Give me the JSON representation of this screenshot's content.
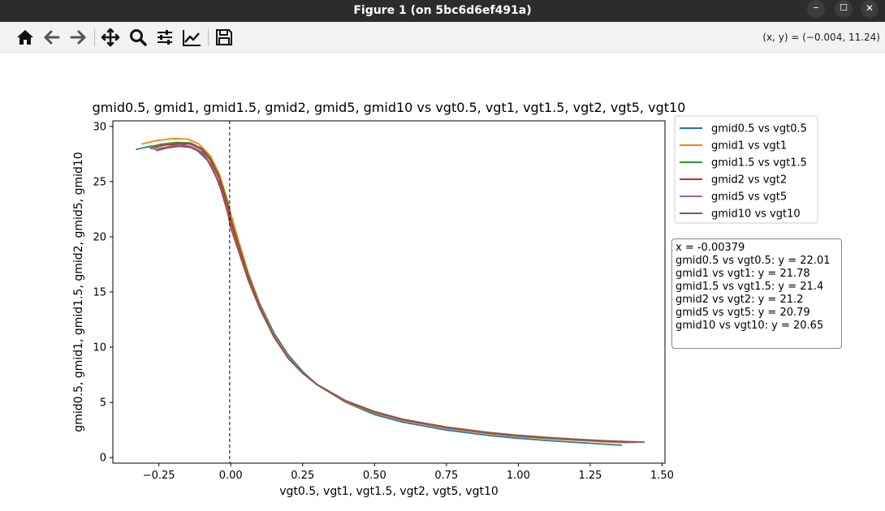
{
  "window": {
    "title": "Figure 1 (on 5bc6d6ef491a)",
    "minimize_icon": "minimize-icon",
    "maximize_icon": "maximize-icon",
    "close_icon": "close-icon"
  },
  "toolbar": {
    "tools": [
      "home-icon",
      "back-arrow-icon",
      "forward-arrow-icon",
      "pan-move-icon",
      "zoom-magnifier-icon",
      "configure-subplots-icon",
      "edit-axis-icon",
      "save-floppy-icon"
    ],
    "coords": "(x, y) = (−0.004, 11.24)"
  },
  "annotation": {
    "lines": [
      "x = -0.00379",
      "gmid0.5 vs vgt0.5: y = 22.01",
      "gmid1 vs vgt1: y = 21.78",
      "gmid1.5 vs vgt1.5: y = 21.4",
      "gmid2 vs vgt2: y = 21.2",
      "gmid5 vs vgt5: y = 20.79",
      "gmid10 vs vgt10: y = 20.65"
    ]
  },
  "chart_data": {
    "type": "line",
    "title": "gmid0.5, gmid1, gmid1.5, gmid2, gmid5, gmid10 vs vgt0.5, vgt1, vgt1.5, vgt2, vgt5, vgt10",
    "xlabel": "vgt0.5, vgt1, vgt1.5, vgt2, vgt5, vgt10",
    "ylabel": "gmid0.5, gmid1, gmid1.5, gmid2, gmid5, gmid10",
    "xlim": [
      -0.41,
      1.51
    ],
    "ylim": [
      -0.5,
      30.5
    ],
    "xticks": [
      -0.25,
      0.0,
      0.25,
      0.5,
      0.75,
      1.0,
      1.25,
      1.5
    ],
    "xtick_labels": [
      "−0.25",
      "0.00",
      "0.25",
      "0.50",
      "0.75",
      "1.00",
      "1.25",
      "1.50"
    ],
    "yticks": [
      0,
      5,
      10,
      15,
      20,
      25,
      30
    ],
    "ytick_labels": [
      "0",
      "5",
      "10",
      "15",
      "20",
      "25",
      "30"
    ],
    "grid": false,
    "legend_position": "outside-top-right",
    "vline": {
      "x": -0.00379,
      "style": "dashed",
      "color": "#000000"
    },
    "series": [
      {
        "name": "gmid0.5 vs vgt0.5",
        "color": "#1f77b4",
        "x": [
          -0.33,
          -0.28,
          -0.22,
          -0.16,
          -0.12,
          -0.08,
          -0.05,
          -0.02,
          0.0,
          0.03,
          0.06,
          0.1,
          0.15,
          0.2,
          0.25,
          0.3,
          0.4,
          0.5,
          0.6,
          0.75,
          0.9,
          1.0,
          1.1,
          1.2,
          1.3,
          1.36
        ],
        "y": [
          27.9,
          28.2,
          28.35,
          28.3,
          27.9,
          26.9,
          25.4,
          23.3,
          21.8,
          19.3,
          16.8,
          14.0,
          11.3,
          9.3,
          7.8,
          6.6,
          5.0,
          3.9,
          3.2,
          2.5,
          2.0,
          1.75,
          1.55,
          1.38,
          1.22,
          1.12
        ]
      },
      {
        "name": "gmid1 vs vgt1",
        "color": "#ff7f0e",
        "x": [
          -0.31,
          -0.26,
          -0.2,
          -0.15,
          -0.11,
          -0.07,
          -0.04,
          -0.01,
          0.0,
          0.03,
          0.06,
          0.1,
          0.15,
          0.2,
          0.25,
          0.3,
          0.4,
          0.5,
          0.6,
          0.75,
          0.9,
          1.0,
          1.1,
          1.2,
          1.3,
          1.38
        ],
        "y": [
          28.4,
          28.7,
          28.9,
          28.85,
          28.4,
          27.3,
          25.7,
          23.2,
          22.1,
          19.4,
          16.8,
          13.9,
          11.1,
          9.1,
          7.7,
          6.6,
          5.05,
          4.05,
          3.35,
          2.65,
          2.15,
          1.9,
          1.72,
          1.57,
          1.42,
          1.35
        ]
      },
      {
        "name": "gmid1.5 vs vgt1.5",
        "color": "#2ca02c",
        "x": [
          -0.29,
          -0.24,
          -0.19,
          -0.14,
          -0.1,
          -0.07,
          -0.04,
          -0.01,
          0.0,
          0.03,
          0.06,
          0.1,
          0.15,
          0.2,
          0.25,
          0.3,
          0.4,
          0.5,
          0.6,
          0.75,
          0.9,
          1.0,
          1.1,
          1.2,
          1.3,
          1.4
        ],
        "y": [
          28.1,
          28.4,
          28.55,
          28.5,
          28.0,
          27.1,
          25.5,
          23.0,
          21.6,
          19.1,
          16.6,
          13.8,
          11.0,
          9.0,
          7.65,
          6.6,
          5.1,
          4.1,
          3.4,
          2.7,
          2.2,
          1.95,
          1.77,
          1.62,
          1.48,
          1.38
        ]
      },
      {
        "name": "gmid2 vs vgt2",
        "color": "#d62728",
        "x": [
          -0.28,
          -0.23,
          -0.18,
          -0.14,
          -0.1,
          -0.07,
          -0.04,
          -0.01,
          0.0,
          0.03,
          0.06,
          0.1,
          0.15,
          0.2,
          0.25,
          0.3,
          0.4,
          0.5,
          0.6,
          0.75,
          0.9,
          1.0,
          1.1,
          1.2,
          1.3,
          1.41
        ],
        "y": [
          28.0,
          28.3,
          28.45,
          28.4,
          27.9,
          26.9,
          25.3,
          22.7,
          21.4,
          18.9,
          16.4,
          13.7,
          11.0,
          9.0,
          7.65,
          6.6,
          5.12,
          4.12,
          3.42,
          2.72,
          2.22,
          1.98,
          1.8,
          1.64,
          1.5,
          1.38
        ]
      },
      {
        "name": "gmid5 vs vgt5",
        "color": "#9467bd",
        "x": [
          -0.27,
          -0.22,
          -0.18,
          -0.14,
          -0.1,
          -0.07,
          -0.04,
          -0.01,
          0.0,
          0.03,
          0.06,
          0.1,
          0.15,
          0.2,
          0.25,
          0.3,
          0.4,
          0.5,
          0.6,
          0.75,
          0.9,
          1.0,
          1.1,
          1.2,
          1.3,
          1.43
        ],
        "y": [
          27.9,
          28.15,
          28.3,
          28.2,
          27.7,
          26.6,
          24.9,
          22.3,
          21.0,
          18.6,
          16.2,
          13.6,
          10.95,
          9.0,
          7.65,
          6.62,
          5.14,
          4.15,
          3.45,
          2.75,
          2.25,
          2.0,
          1.82,
          1.66,
          1.52,
          1.4
        ]
      },
      {
        "name": "gmid10 vs vgt10",
        "color": "#8c564b",
        "x": [
          -0.26,
          -0.22,
          -0.18,
          -0.14,
          -0.1,
          -0.07,
          -0.04,
          -0.01,
          0.0,
          0.03,
          0.06,
          0.1,
          0.15,
          0.2,
          0.25,
          0.3,
          0.4,
          0.5,
          0.6,
          0.75,
          0.9,
          1.0,
          1.1,
          1.2,
          1.3,
          1.44
        ],
        "y": [
          27.8,
          28.05,
          28.2,
          28.1,
          27.6,
          26.5,
          24.8,
          22.1,
          20.8,
          18.5,
          16.1,
          13.55,
          10.93,
          9.0,
          7.66,
          6.63,
          5.15,
          4.17,
          3.47,
          2.77,
          2.27,
          2.02,
          1.83,
          1.67,
          1.53,
          1.4
        ]
      }
    ]
  }
}
